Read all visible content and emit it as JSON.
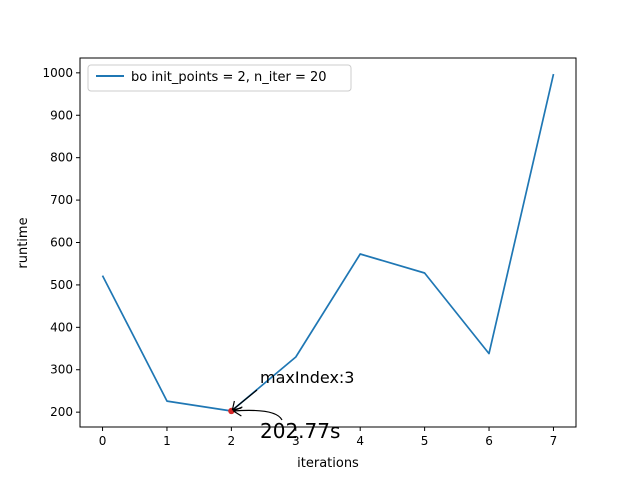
{
  "chart_data": {
    "type": "line",
    "xlabel": "iterations",
    "ylabel": "runtime",
    "xlim": [
      -0.35,
      7.35
    ],
    "ylim": [
      165,
      1035
    ],
    "x_ticks": [
      0,
      1,
      2,
      3,
      4,
      5,
      6,
      7
    ],
    "y_ticks": [
      200,
      300,
      400,
      500,
      600,
      700,
      800,
      900,
      1000
    ],
    "grid": false,
    "legend_position": "upper-left",
    "series": [
      {
        "name": "bo  init_points = 2, n_iter = 20",
        "color": "#1f77b4",
        "x": [
          0,
          1,
          2,
          3,
          4,
          5,
          6,
          7
        ],
        "y": [
          522,
          226,
          202.77,
          330,
          573,
          528,
          338,
          997
        ]
      }
    ],
    "highlight_point": {
      "x": 2,
      "y": 202.77,
      "color": "#d62728"
    },
    "annotations": [
      {
        "text": "maxIndex:3"
      },
      {
        "text": "202.77s"
      }
    ]
  }
}
